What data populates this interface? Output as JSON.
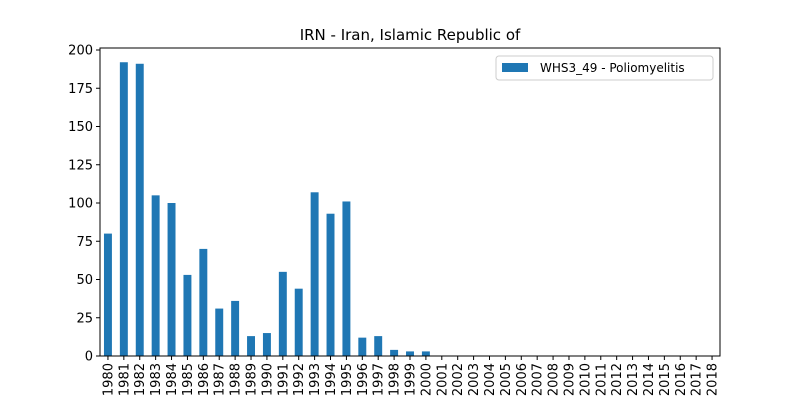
{
  "chart_data": {
    "type": "bar",
    "title": "IRN - Iran, Islamic Republic of",
    "xlabel": "",
    "ylabel": "",
    "ylim": [
      0,
      200
    ],
    "yticks": [
      0,
      25,
      50,
      75,
      100,
      125,
      150,
      175,
      200
    ],
    "categories": [
      "1980",
      "1981",
      "1982",
      "1983",
      "1984",
      "1985",
      "1986",
      "1987",
      "1988",
      "1989",
      "1990",
      "1991",
      "1992",
      "1993",
      "1994",
      "1995",
      "1996",
      "1997",
      "1998",
      "1999",
      "2000",
      "2001",
      "2002",
      "2003",
      "2004",
      "2005",
      "2006",
      "2007",
      "2008",
      "2009",
      "2010",
      "2011",
      "2012",
      "2013",
      "2014",
      "2015",
      "2016",
      "2017",
      "2018"
    ],
    "series": [
      {
        "name": "WHS3_49 - Poliomyelitis",
        "color": "#1f77b4",
        "values": [
          80,
          192,
          191,
          105,
          100,
          53,
          70,
          31,
          36,
          13,
          15,
          55,
          44,
          107,
          93,
          101,
          12,
          13,
          4,
          3,
          3,
          0,
          0,
          0,
          0,
          0,
          0,
          0,
          0,
          0,
          0,
          0,
          0,
          0,
          0,
          0,
          0,
          0,
          0
        ]
      }
    ],
    "legend_position": "top-right",
    "grid": false
  }
}
